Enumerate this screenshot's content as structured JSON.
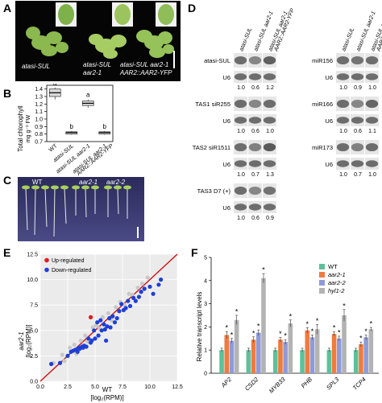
{
  "panels": {
    "A": {
      "letter": "A",
      "labels": [
        "atasi-SUL",
        "atasi-SUL",
        "aar2-1",
        "atasi-SUL aar2-1",
        "AAR2::AAR2-YFP"
      ]
    },
    "B": {
      "letter": "B",
      "ylabel_line1": "Total chlorophyll",
      "ylabel_line2": "mg g⁻¹ FW",
      "yticks": [
        "1.4",
        "1.3",
        "1.2",
        "1.1",
        "1.0",
        "0.9",
        "0.8",
        "0.7"
      ],
      "groups": [
        {
          "line1": "WT",
          "line2": "",
          "line3": "",
          "letter": "a",
          "median": 1.35,
          "q1": 1.3,
          "q3": 1.4,
          "min": 1.26,
          "max": 1.42
        },
        {
          "line1": "atasi-SUL",
          "line2": "",
          "line3": "",
          "letter": "b",
          "median": 0.82,
          "q1": 0.8,
          "q3": 0.83,
          "min": 0.79,
          "max": 0.84
        },
        {
          "line1": "atasi-SUL aar2-1",
          "line2": "",
          "line3": "",
          "letter": "a",
          "median": 1.21,
          "q1": 1.18,
          "q3": 1.24,
          "min": 1.15,
          "max": 1.26
        },
        {
          "line1": "atasi-SUL aar2-1",
          "line2": "AAR2::AAR2-YFP",
          "line3": "",
          "letter": "b",
          "median": 0.82,
          "q1": 0.8,
          "q3": 0.83,
          "min": 0.79,
          "max": 0.84
        }
      ]
    },
    "C": {
      "letter": "C",
      "labels": [
        "WT",
        "aar2-1",
        "aar2-2"
      ]
    },
    "D": {
      "letter": "D",
      "column_headers_left": [
        "atasi-SUL",
        "atasi-SUL aar2-1",
        "atasi-SUL aar2-1 AAR2::AAR2-YFP"
      ],
      "column_headers_right": [
        "atasi-SUL",
        "atasi-SUL aar2-1",
        "atasi-SUL aar2-1 AAR2::AAR2-YFP"
      ],
      "left_blots": [
        {
          "probe": "atasi-SUL",
          "control": "U6",
          "values": [
            "1.0",
            "0.6",
            "1.2"
          ]
        },
        {
          "probe": "TAS1 siR255",
          "control": "U6",
          "values": [
            "1.0",
            "0.6",
            "1.0"
          ]
        },
        {
          "probe": "TAS2 siR1511",
          "control": "U6",
          "values": [
            "1.0",
            "0.7",
            "1.3"
          ]
        },
        {
          "probe": "TAS3 D7 (+)",
          "control": "U6",
          "values": [
            "1.0",
            "0.6",
            "0.9"
          ]
        }
      ],
      "right_blots": [
        {
          "probe": "miR156",
          "control": "U6",
          "values": [
            "1.0",
            "0.9",
            "1.0"
          ]
        },
        {
          "probe": "miR166",
          "control": "U6",
          "values": [
            "1.0",
            "0.6",
            "1.1"
          ]
        },
        {
          "probe": "miR173",
          "control": "U6",
          "values": [
            "1.0",
            "0.7",
            "1.0"
          ]
        }
      ]
    },
    "E": {
      "letter": "E",
      "legend": [
        {
          "label": "Up-regulated",
          "color": "#e41a1c"
        },
        {
          "label": "Down-regulated",
          "color": "#1f3fd6"
        }
      ],
      "xlabel_line1": "WT",
      "xlabel_line2": "[log₂(RPM)]",
      "ylabel_line1": "aar2-1",
      "ylabel_line2": "[log₂(RPM)]",
      "ticks": [
        "0.0",
        "2.5",
        "5.0",
        "7.5",
        "10.0",
        "12.5"
      ]
    },
    "F": {
      "letter": "F",
      "ylabel": "Relative transcript levels",
      "yticks": [
        "0",
        "1",
        "2",
        "3",
        "4",
        "5"
      ],
      "star": "*"
    }
  },
  "chart_data": [
    {
      "type": "scatter",
      "panel": "E",
      "title": "",
      "xlabel": "WT [log₂(RPM)]",
      "ylabel": "aar2-1 [log₂(RPM)]",
      "xlim": [
        0,
        12.5
      ],
      "ylim": [
        0,
        12.5
      ],
      "diagonal": true,
      "grid": true,
      "series": [
        {
          "name": "Up-regulated",
          "color": "#e41a1c",
          "points": [
            [
              4.6,
              6.3
            ]
          ]
        },
        {
          "name": "Down-regulated",
          "color": "#1f3fd6",
          "points": [
            [
              1.0,
              1.7
            ],
            [
              1.8,
              1.8
            ],
            [
              2.5,
              2.5
            ],
            [
              2.8,
              2.9
            ],
            [
              3.0,
              3.0
            ],
            [
              3.2,
              3.1
            ],
            [
              3.4,
              2.9
            ],
            [
              3.5,
              3.3
            ],
            [
              3.6,
              3.2
            ],
            [
              3.8,
              3.4
            ],
            [
              3.9,
              3.3
            ],
            [
              4.0,
              3.5
            ],
            [
              4.2,
              3.4
            ],
            [
              4.4,
              4.2
            ],
            [
              4.6,
              3.8
            ],
            [
              4.7,
              4.0
            ],
            [
              4.9,
              5.0
            ],
            [
              5.0,
              4.2
            ],
            [
              5.2,
              5.8
            ],
            [
              5.3,
              4.5
            ],
            [
              5.5,
              6.0
            ],
            [
              5.6,
              5.0
            ],
            [
              5.8,
              5.6
            ],
            [
              5.9,
              5.1
            ],
            [
              6.0,
              4.0
            ],
            [
              6.1,
              5.4
            ],
            [
              6.3,
              6.2
            ],
            [
              6.4,
              5.3
            ],
            [
              6.6,
              6.4
            ],
            [
              6.8,
              5.8
            ],
            [
              7.0,
              6.2
            ],
            [
              7.2,
              6.9
            ],
            [
              7.4,
              7.6
            ],
            [
              7.6,
              7.0
            ],
            [
              7.8,
              7.2
            ],
            [
              8.0,
              7.9
            ],
            [
              8.2,
              7.4
            ],
            [
              8.5,
              8.2
            ],
            [
              8.7,
              7.9
            ],
            [
              9.0,
              8.3
            ],
            [
              9.2,
              8.8
            ],
            [
              9.5,
              9.1
            ],
            [
              10.0,
              9.3
            ],
            [
              10.3,
              8.6
            ],
            [
              10.8,
              9.5
            ],
            [
              11.0,
              10.0
            ]
          ]
        },
        {
          "name": "",
          "color": "#c8c8c8",
          "points": [
            [
              1.2,
              1.8
            ],
            [
              2.0,
              2.6
            ],
            [
              2.2,
              2.0
            ],
            [
              2.7,
              3.3
            ],
            [
              3.1,
              3.6
            ],
            [
              3.3,
              2.7
            ],
            [
              3.7,
              4.0
            ],
            [
              4.1,
              4.5
            ],
            [
              4.3,
              3.9
            ],
            [
              4.8,
              5.3
            ],
            [
              5.1,
              5.5
            ],
            [
              5.4,
              5.2
            ],
            [
              5.7,
              6.3
            ],
            [
              6.2,
              6.7
            ],
            [
              6.5,
              6.0
            ],
            [
              6.9,
              7.3
            ],
            [
              7.3,
              7.8
            ],
            [
              7.7,
              7.5
            ],
            [
              8.1,
              8.6
            ],
            [
              8.4,
              8.5
            ],
            [
              8.9,
              9.2
            ],
            [
              9.3,
              9.6
            ],
            [
              9.8,
              10.2
            ]
          ]
        }
      ]
    },
    {
      "type": "bar",
      "panel": "F",
      "title": "",
      "xlabel": "",
      "ylabel": "Relative transcript levels",
      "ylim": [
        0,
        5
      ],
      "legend_position": "top-right",
      "categories": [
        "AP2",
        "CSD2",
        "MYB33",
        "PHB",
        "SPL3",
        "TCP4"
      ],
      "series": [
        {
          "name": "WT",
          "color": "#5bc29b",
          "values": [
            1.0,
            1.0,
            1.0,
            1.0,
            1.0,
            1.0
          ],
          "errors": [
            0.08,
            0.08,
            0.08,
            0.08,
            0.08,
            0.08
          ],
          "stars": [
            false,
            false,
            false,
            false,
            false,
            false
          ]
        },
        {
          "name": "aar2-1",
          "color": "#f07b3f",
          "values": [
            1.65,
            1.45,
            1.45,
            1.85,
            1.7,
            1.25
          ],
          "errors": [
            0.15,
            0.12,
            0.1,
            0.12,
            0.1,
            0.1
          ],
          "stars": [
            true,
            true,
            true,
            true,
            true,
            true
          ]
        },
        {
          "name": "aar2-2",
          "color": "#8f9bd8",
          "values": [
            1.4,
            1.75,
            1.35,
            1.55,
            1.5,
            1.55
          ],
          "errors": [
            0.1,
            0.12,
            0.1,
            0.1,
            0.1,
            0.1
          ],
          "stars": [
            true,
            true,
            true,
            true,
            true,
            true
          ]
        },
        {
          "name": "hyl1-2",
          "color": "#b3b3b3",
          "values": [
            2.3,
            4.1,
            2.15,
            1.9,
            2.5,
            1.9
          ],
          "errors": [
            0.2,
            0.2,
            0.15,
            0.2,
            0.25,
            0.08
          ],
          "stars": [
            true,
            true,
            true,
            true,
            true,
            true
          ]
        }
      ]
    }
  ]
}
